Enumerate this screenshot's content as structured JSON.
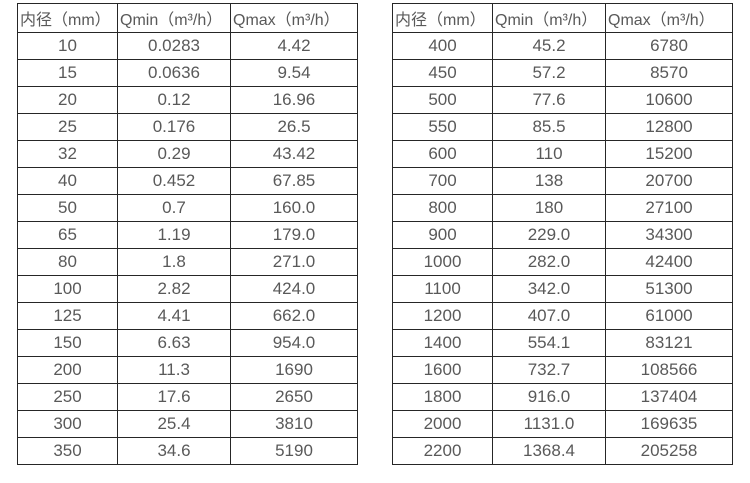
{
  "colors": {
    "border": "#262626",
    "text": "#595959",
    "background": "#ffffff"
  },
  "tables": [
    {
      "name": "flow-rate-table-small-diameters",
      "headers": [
        "内径（mm）",
        "Qmin（m³/h）",
        "Qmax（m³/h）"
      ],
      "rows": [
        [
          "10",
          "0.0283",
          "4.42"
        ],
        [
          "15",
          "0.0636",
          "9.54"
        ],
        [
          "20",
          "0.12",
          "16.96"
        ],
        [
          "25",
          "0.176",
          "26.5"
        ],
        [
          "32",
          "0.29",
          "43.42"
        ],
        [
          "40",
          "0.452",
          "67.85"
        ],
        [
          "50",
          "0.7",
          "160.0"
        ],
        [
          "65",
          "1.19",
          "179.0"
        ],
        [
          "80",
          "1.8",
          "271.0"
        ],
        [
          "100",
          "2.82",
          "424.0"
        ],
        [
          "125",
          "4.41",
          "662.0"
        ],
        [
          "150",
          "6.63",
          "954.0"
        ],
        [
          "200",
          "11.3",
          "1690"
        ],
        [
          "250",
          "17.6",
          "2650"
        ],
        [
          "300",
          "25.4",
          "3810"
        ],
        [
          "350",
          "34.6",
          "5190"
        ]
      ]
    },
    {
      "name": "flow-rate-table-large-diameters",
      "headers": [
        "内径（mm）",
        "Qmin（m³/h）",
        "Qmax（m³/h）"
      ],
      "rows": [
        [
          "400",
          "45.2",
          "6780"
        ],
        [
          "450",
          "57.2",
          "8570"
        ],
        [
          "500",
          "77.6",
          "10600"
        ],
        [
          "550",
          "85.5",
          "12800"
        ],
        [
          "600",
          "110",
          "15200"
        ],
        [
          "700",
          "138",
          "20700"
        ],
        [
          "800",
          "180",
          "27100"
        ],
        [
          "900",
          "229.0",
          "34300"
        ],
        [
          "1000",
          "282.0",
          "42400"
        ],
        [
          "1100",
          "342.0",
          "51300"
        ],
        [
          "1200",
          "407.0",
          "61000"
        ],
        [
          "1400",
          "554.1",
          "83121"
        ],
        [
          "1600",
          "732.7",
          "108566"
        ],
        [
          "1800",
          "916.0",
          "137404"
        ],
        [
          "2000",
          "1131.0",
          "169635"
        ],
        [
          "2200",
          "1368.4",
          "205258"
        ]
      ]
    }
  ]
}
